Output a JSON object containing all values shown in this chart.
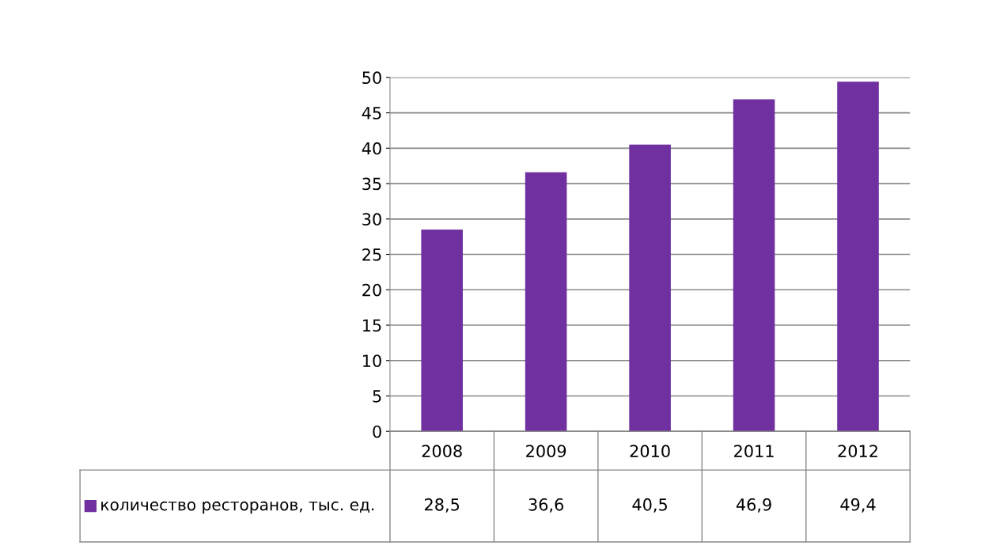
{
  "chart_data": {
    "type": "bar",
    "categories": [
      "2008",
      "2009",
      "2010",
      "2011",
      "2012"
    ],
    "series": [
      {
        "name": "количество ресторанов, тыс. ед.",
        "color": "#7030a0",
        "values": [
          28.5,
          36.6,
          40.5,
          46.9,
          49.4
        ],
        "value_labels": [
          "28,5",
          "36,6",
          "40,5",
          "46,9",
          "49,4"
        ]
      }
    ],
    "ylim": [
      0,
      50
    ],
    "yticks": [
      0,
      5,
      10,
      15,
      20,
      25,
      30,
      35,
      40,
      45,
      50
    ],
    "grid": "y",
    "legend": "bottom"
  }
}
